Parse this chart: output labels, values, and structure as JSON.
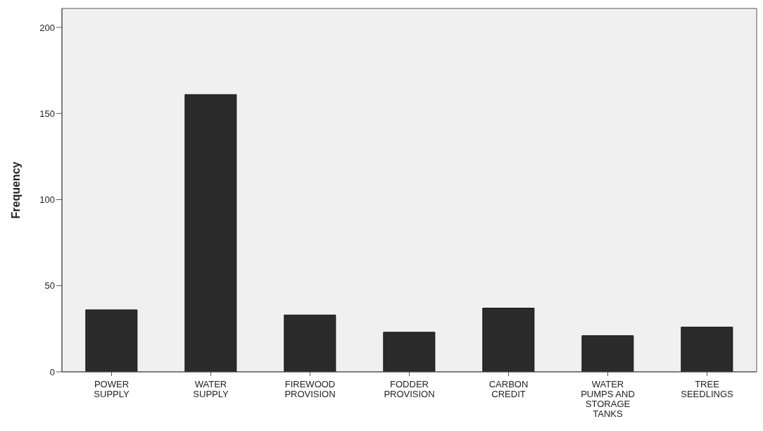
{
  "chart_data": {
    "type": "bar",
    "ylabel": "Frequency",
    "categories": [
      "POWER SUPPLY",
      "WATER SUPPLY",
      "FIREWOOD PROVISION",
      "FODDER PROVISION",
      "CARBON CREDIT",
      "WATER PUMPS AND STORAGE TANKS",
      "TREE SEEDLINGS"
    ],
    "values": [
      36,
      161,
      33,
      23,
      37,
      21,
      26
    ],
    "color": "#2b2b2b",
    "ylim": [
      0,
      211
    ],
    "yticks": [
      0,
      50,
      100,
      150,
      200
    ],
    "legend": false
  }
}
